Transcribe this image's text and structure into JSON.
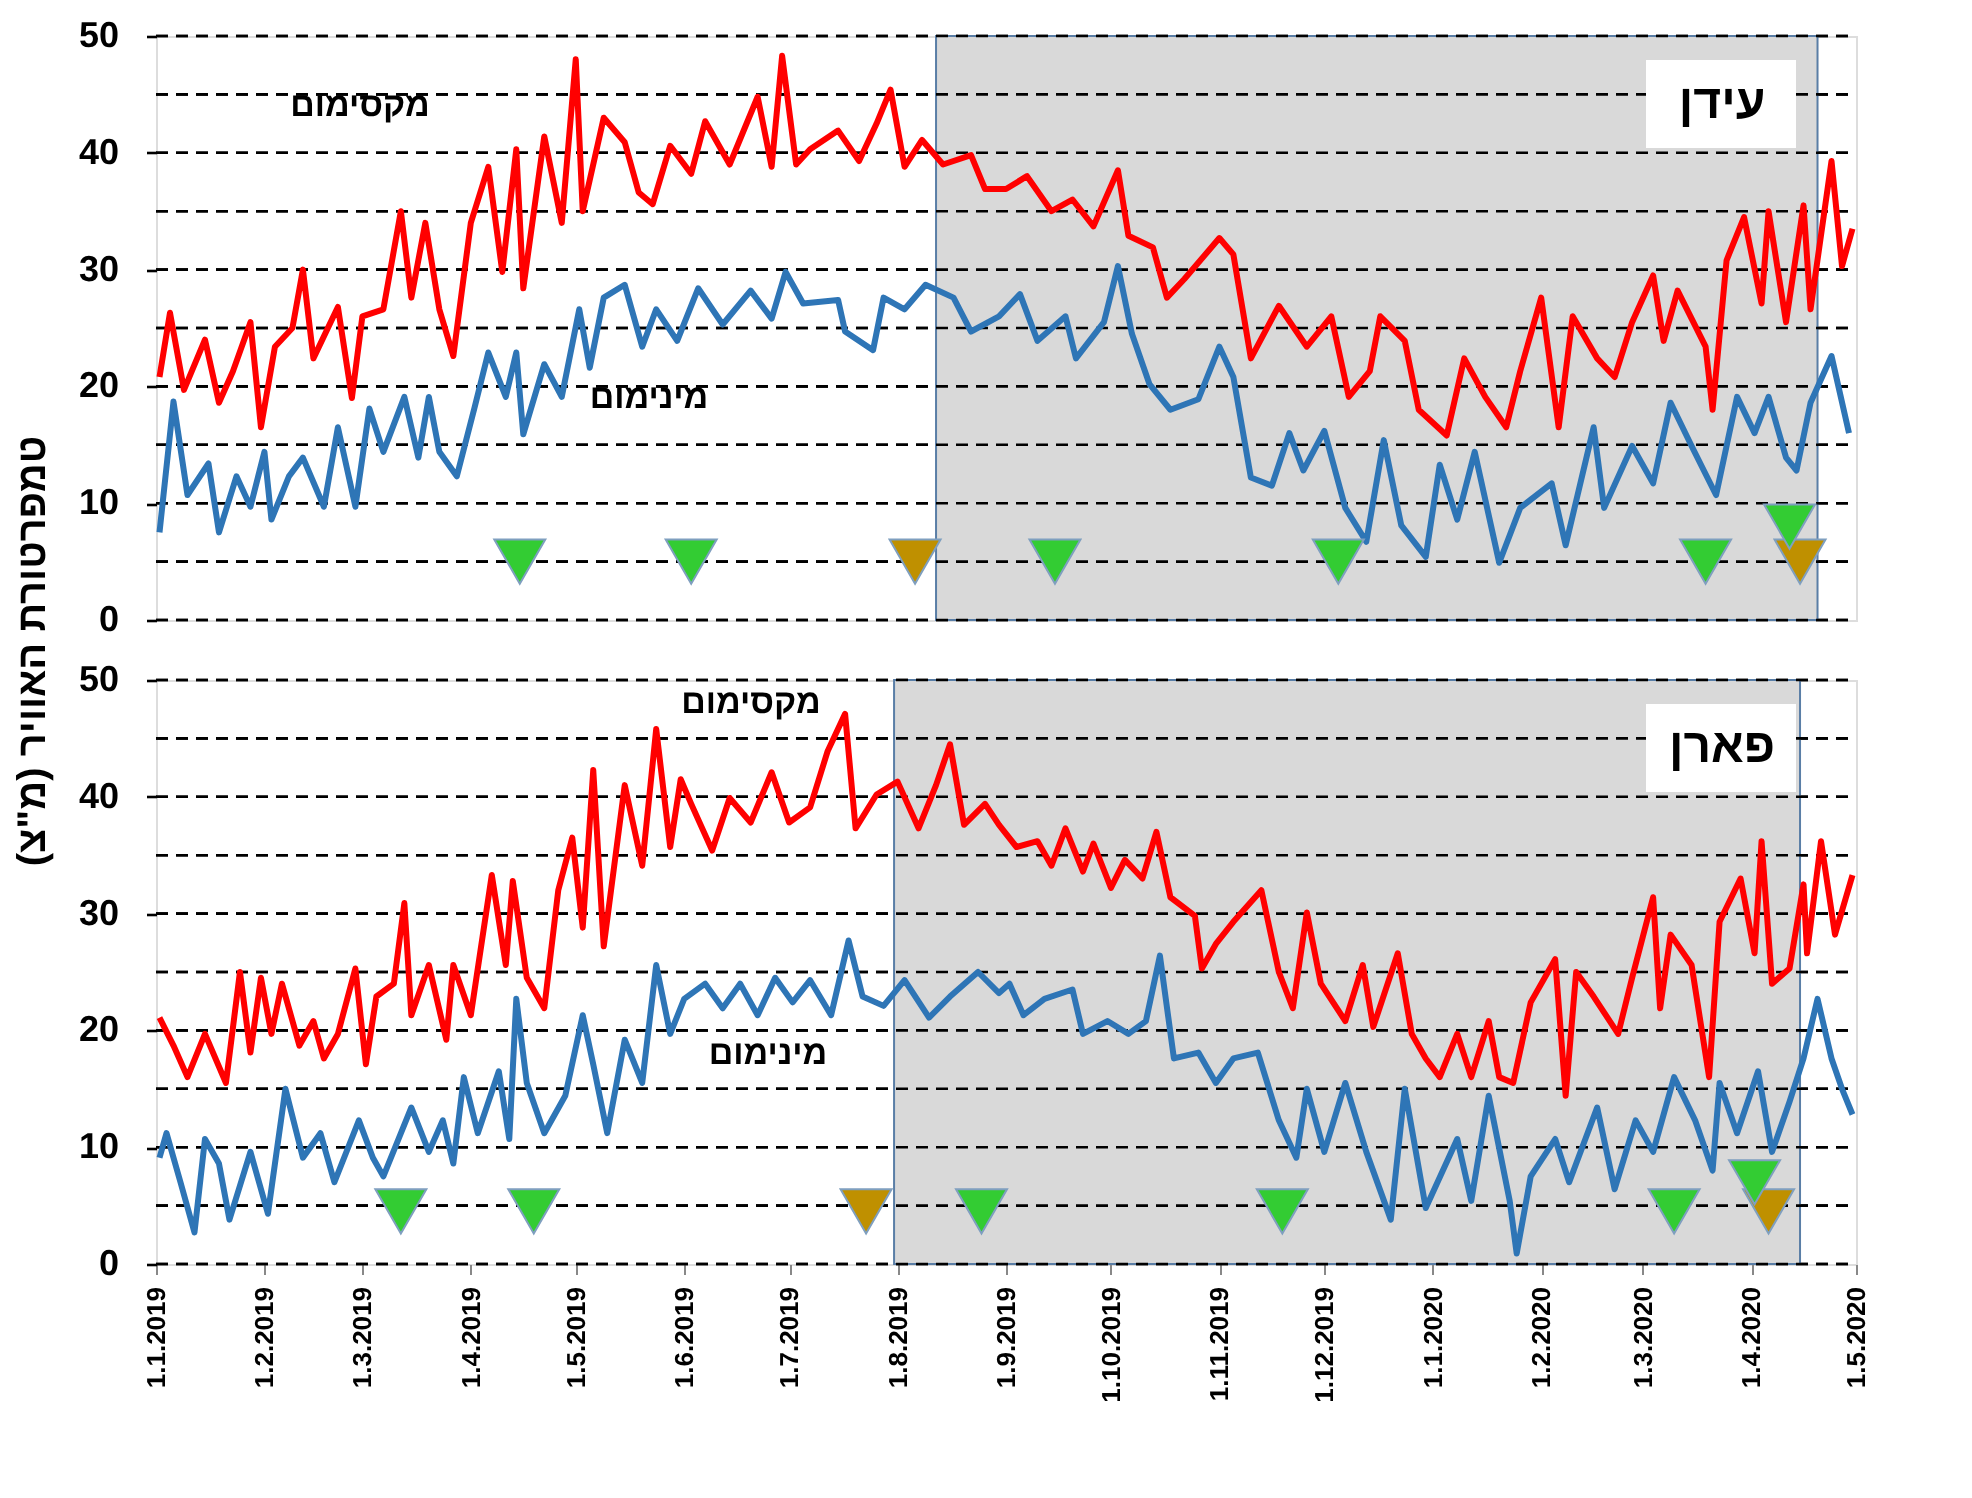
{
  "chart_data": [
    {
      "type": "line",
      "title": "עידן",
      "ylabel": "טמפרטורת האוויר (מ\"צ)",
      "xlim": [
        "2019-01-01",
        "2020-05-01"
      ],
      "ylim": [
        0,
        50
      ],
      "yticks": [
        0,
        {
          "value": 5,
          "label": null
        },
        10,
        {
          "value": 15,
          "label": null
        },
        20,
        {
          "value": 25,
          "label": null
        },
        30,
        {
          "value": 35,
          "label": null
        },
        40,
        {
          "value": 45,
          "label": null
        },
        50
      ],
      "tick_labels": "y",
      "grid": "y",
      "bands": [
        {
          "axis": "x",
          "from": "2019-08-12",
          "to": "2020-04-20",
          "color": "#d9d9d9"
        }
      ],
      "series": [
        {
          "name": "מקסימום",
          "color": "#ff0000",
          "x": [
            "2019-01-02",
            "2019-01-05",
            "2019-01-09",
            "2019-01-15",
            "2019-01-19",
            "2019-01-23",
            "2019-01-28",
            "2019-01-31",
            "2019-02-04",
            "2019-02-09",
            "2019-02-12",
            "2019-02-15",
            "2019-02-22",
            "2019-02-26",
            "2019-03-01",
            "2019-03-07",
            "2019-03-12",
            "2019-03-15",
            "2019-03-19",
            "2019-03-23",
            "2019-03-27",
            "2019-04-01",
            "2019-04-06",
            "2019-04-10",
            "2019-04-14",
            "2019-04-16",
            "2019-04-22",
            "2019-04-27",
            "2019-05-01",
            "2019-05-03",
            "2019-05-09",
            "2019-05-15",
            "2019-05-19",
            "2019-05-23",
            "2019-05-28",
            "2019-06-03",
            "2019-06-07",
            "2019-06-14",
            "2019-06-22",
            "2019-06-26",
            "2019-06-29",
            "2019-07-03",
            "2019-07-07",
            "2019-07-15",
            "2019-07-21",
            "2019-07-26",
            "2019-07-30",
            "2019-08-03",
            "2019-08-08",
            "2019-08-14",
            "2019-08-22",
            "2019-08-26",
            "2019-09-01",
            "2019-09-07",
            "2019-09-14",
            "2019-09-20",
            "2019-09-26",
            "2019-10-03",
            "2019-10-06",
            "2019-10-13",
            "2019-10-17",
            "2019-10-22",
            "2019-11-01",
            "2019-11-05",
            "2019-11-10",
            "2019-11-18",
            "2019-11-26",
            "2019-12-03",
            "2019-12-08",
            "2019-12-14",
            "2019-12-17",
            "2019-12-24",
            "2019-12-28",
            "2020-01-05",
            "2020-01-10",
            "2020-01-16",
            "2020-01-22",
            "2020-01-26",
            "2020-02-01",
            "2020-02-06",
            "2020-02-10",
            "2020-02-17",
            "2020-02-22",
            "2020-02-27",
            "2020-03-04",
            "2020-03-07",
            "2020-03-11",
            "2020-03-19",
            "2020-03-21",
            "2020-03-25",
            "2020-03-30",
            "2020-04-04",
            "2020-04-06",
            "2020-04-11",
            "2020-04-16",
            "2020-04-18",
            "2020-04-24",
            "2020-04-27",
            "2020-04-30"
          ],
          "values": [
            20.8,
            26.3,
            19.7,
            24,
            18.6,
            21.3,
            25.5,
            16.5,
            23.4,
            25,
            30,
            22.4,
            26.8,
            19,
            26,
            26.6,
            35,
            27.6,
            34,
            26.6,
            22.6,
            34,
            38.8,
            29.8,
            40.3,
            28.4,
            41.4,
            34,
            48,
            35,
            43,
            40.9,
            36.6,
            35.6,
            40.6,
            38.2,
            42.7,
            39,
            44.8,
            38.8,
            48.3,
            39,
            40.3,
            41.9,
            39.3,
            42.5,
            45.4,
            38.8,
            41.1,
            39,
            39.8,
            36.9,
            36.9,
            38,
            35,
            36,
            33.7,
            38.5,
            32.9,
            31.9,
            27.6,
            29.2,
            32.7,
            31.3,
            22.4,
            26.9,
            23.4,
            26,
            19.1,
            21.3,
            26,
            23.9,
            18,
            15.8,
            22.4,
            19.1,
            16.5,
            21.3,
            27.6,
            16.5,
            26,
            22.4,
            20.8,
            25.5,
            29.5,
            23.9,
            28.2,
            23.4,
            18,
            30.8,
            34.5,
            27.1,
            35,
            25.5,
            35.5,
            26.6,
            39.3,
            30.3,
            33.5
          ]
        },
        {
          "name": "מינימום",
          "color": "#2e75b6",
          "x": [
            "2019-01-02",
            "2019-01-06",
            "2019-01-10",
            "2019-01-16",
            "2019-01-19",
            "2019-01-24",
            "2019-01-28",
            "2019-02-01",
            "2019-02-03",
            "2019-02-08",
            "2019-02-12",
            "2019-02-18",
            "2019-02-22",
            "2019-02-27",
            "2019-03-03",
            "2019-03-07",
            "2019-03-13",
            "2019-03-17",
            "2019-03-20",
            "2019-03-23",
            "2019-03-28",
            "2019-04-02",
            "2019-04-06",
            "2019-04-11",
            "2019-04-14",
            "2019-04-16",
            "2019-04-22",
            "2019-04-27",
            "2019-05-02",
            "2019-05-05",
            "2019-05-09",
            "2019-05-15",
            "2019-05-20",
            "2019-05-24",
            "2019-05-30",
            "2019-06-05",
            "2019-06-12",
            "2019-06-20",
            "2019-06-26",
            "2019-06-30",
            "2019-07-05",
            "2019-07-15",
            "2019-07-17",
            "2019-07-25",
            "2019-07-28",
            "2019-08-03",
            "2019-08-09",
            "2019-08-17",
            "2019-08-22",
            "2019-08-30",
            "2019-09-05",
            "2019-09-10",
            "2019-09-18",
            "2019-09-21",
            "2019-09-29",
            "2019-10-03",
            "2019-10-07",
            "2019-10-12",
            "2019-10-18",
            "2019-10-26",
            "2019-11-01",
            "2019-11-05",
            "2019-11-10",
            "2019-11-16",
            "2019-11-21",
            "2019-11-25",
            "2019-12-01",
            "2019-12-07",
            "2019-12-13",
            "2019-12-18",
            "2019-12-23",
            "2019-12-30",
            "2020-01-03",
            "2020-01-08",
            "2020-01-13",
            "2020-01-20",
            "2020-01-26",
            "2020-02-04",
            "2020-02-08",
            "2020-02-16",
            "2020-02-19",
            "2020-02-27",
            "2020-03-04",
            "2020-03-09",
            "2020-03-15",
            "2020-03-22",
            "2020-03-28",
            "2020-04-02",
            "2020-04-06",
            "2020-04-11",
            "2020-04-14",
            "2020-04-18",
            "2020-04-24",
            "2020-04-29"
          ],
          "values": [
            7.5,
            18.7,
            10.7,
            13.4,
            7.5,
            12.3,
            9.7,
            14.4,
            8.6,
            12.3,
            13.9,
            9.7,
            16.5,
            9.7,
            18.1,
            14.4,
            19.1,
            13.9,
            19.1,
            14.4,
            12.3,
            18.1,
            22.9,
            19.1,
            22.9,
            15.9,
            21.9,
            19.1,
            26.6,
            21.6,
            27.6,
            28.7,
            23.4,
            26.6,
            23.9,
            28.4,
            25.3,
            28.2,
            25.8,
            29.8,
            27.1,
            27.4,
            24.7,
            23.1,
            27.6,
            26.6,
            28.7,
            27.6,
            24.7,
            26,
            27.9,
            23.9,
            26,
            22.4,
            25.5,
            30.3,
            24.5,
            20.2,
            18,
            18.9,
            23.4,
            20.8,
            12.2,
            11.5,
            16,
            12.8,
            16.2,
            9.6,
            6.7,
            15.4,
            8.1,
            5.4,
            13.3,
            8.6,
            14.4,
            4.9,
            9.6,
            11.7,
            6.4,
            16.5,
            9.6,
            14.9,
            11.7,
            18.6,
            14.9,
            10.7,
            19.1,
            16,
            19.1,
            13.9,
            12.8,
            18.6,
            22.6,
            16
          ]
        },
        {
          "type": "scatter",
          "color": "#bf9000",
          "marker": "triangle",
          "x": [
            "2019-08-06",
            "2020-04-15"
          ],
          "values": [
            5,
            5
          ]
        },
        {
          "type": "scatter",
          "color": "#33cc33",
          "marker": "triangle",
          "x": [
            "2019-04-15",
            "2019-06-03",
            "2019-09-15",
            "2019-12-05",
            "2020-03-19",
            "2020-04-12"
          ],
          "values": [
            5,
            5,
            5,
            5,
            5,
            8
          ]
        }
      ]
    },
    {
      "type": "line",
      "title": "פארן",
      "xlim": [
        "2019-01-01",
        "2020-05-01"
      ],
      "xticks": [
        {
          "value": "2019-01-01",
          "label": "1.1.2019"
        },
        {
          "value": "2019-02-01",
          "label": "1.2.2019"
        },
        {
          "value": "2019-03-01",
          "label": "1.3.2019"
        },
        {
          "value": "2019-04-01",
          "label": "1.4.2019"
        },
        {
          "value": "2019-05-01",
          "label": "1.5.2019"
        },
        {
          "value": "2019-06-01",
          "label": "1.6.2019"
        },
        {
          "value": "2019-07-01",
          "label": "1.7.2019"
        },
        {
          "value": "2019-08-01",
          "label": "1.8.2019"
        },
        {
          "value": "2019-09-01",
          "label": "1.9.2019"
        },
        {
          "value": "2019-10-01",
          "label": "1.10.2019"
        },
        {
          "value": "2019-11-01",
          "label": "1.11.2019"
        },
        {
          "value": "2019-12-01",
          "label": "1.12.2019"
        },
        {
          "value": "2020-01-01",
          "label": "1.1.2020"
        },
        {
          "value": "2020-02-01",
          "label": "1.2.2020"
        },
        {
          "value": "2020-03-01",
          "label": "1.3.2020"
        },
        {
          "value": "2020-04-01",
          "label": "1.4.2020"
        },
        {
          "value": "2020-05-01",
          "label": "1.5.2020"
        }
      ],
      "ylim": [
        0,
        50
      ],
      "yticks": [
        0,
        {
          "value": 5,
          "label": null
        },
        10,
        {
          "value": 15,
          "label": null
        },
        20,
        {
          "value": 25,
          "label": null
        },
        30,
        {
          "value": 35,
          "label": null
        },
        40,
        {
          "value": 45,
          "label": null
        },
        50
      ],
      "grid": "y",
      "bands": [
        {
          "axis": "x",
          "from": "2019-07-31",
          "to": "2020-04-15",
          "color": "#d9d9d9"
        }
      ],
      "series": [
        {
          "name": "מקסימום",
          "color": "#ff0000",
          "x": [
            "2019-01-02",
            "2019-01-06",
            "2019-01-10",
            "2019-01-15",
            "2019-01-21",
            "2019-01-25",
            "2019-01-28",
            "2019-01-31",
            "2019-02-03",
            "2019-02-06",
            "2019-02-11",
            "2019-02-15",
            "2019-02-18",
            "2019-02-22",
            "2019-02-27",
            "2019-03-02",
            "2019-03-05",
            "2019-03-10",
            "2019-03-13",
            "2019-03-15",
            "2019-03-20",
            "2019-03-25",
            "2019-03-27",
            "2019-04-01",
            "2019-04-07",
            "2019-04-11",
            "2019-04-13",
            "2019-04-17",
            "2019-04-22",
            "2019-04-26",
            "2019-04-30",
            "2019-05-03",
            "2019-05-06",
            "2019-05-09",
            "2019-05-15",
            "2019-05-20",
            "2019-05-24",
            "2019-05-28",
            "2019-05-31",
            "2019-06-03",
            "2019-06-09",
            "2019-06-14",
            "2019-06-20",
            "2019-06-26",
            "2019-07-01",
            "2019-07-07",
            "2019-07-12",
            "2019-07-17",
            "2019-07-20",
            "2019-07-26",
            "2019-08-01",
            "2019-08-07",
            "2019-08-12",
            "2019-08-16",
            "2019-08-20",
            "2019-08-26",
            "2019-08-30",
            "2019-09-04",
            "2019-09-10",
            "2019-09-14",
            "2019-09-18",
            "2019-09-23",
            "2019-09-26",
            "2019-10-01",
            "2019-10-05",
            "2019-10-10",
            "2019-10-14",
            "2019-10-18",
            "2019-10-25",
            "2019-10-27",
            "2019-10-31",
            "2019-11-05",
            "2019-11-13",
            "2019-11-18",
            "2019-11-22",
            "2019-11-26",
            "2019-11-30",
            "2019-12-07",
            "2019-12-12",
            "2019-12-15",
            "2019-12-22",
            "2019-12-26",
            "2019-12-30",
            "2020-01-03",
            "2020-01-08",
            "2020-01-12",
            "2020-01-17",
            "2020-01-20",
            "2020-01-24",
            "2020-01-29",
            "2020-02-05",
            "2020-02-08",
            "2020-02-11",
            "2020-02-16",
            "2020-02-23",
            "2020-02-27",
            "2020-03-04",
            "2020-03-06",
            "2020-03-09",
            "2020-03-15",
            "2020-03-20",
            "2020-03-23",
            "2020-03-29",
            "2020-04-02",
            "2020-04-04",
            "2020-04-07",
            "2020-04-12",
            "2020-04-16",
            "2020-04-17",
            "2020-04-21",
            "2020-04-25",
            "2020-04-30"
          ],
          "values": [
            21.1,
            18.7,
            16,
            19.7,
            15.5,
            25,
            18.1,
            24.5,
            19.7,
            24,
            18.7,
            20.8,
            17.6,
            19.7,
            25.3,
            17.1,
            22.9,
            24,
            30.9,
            21.3,
            25.6,
            19.2,
            25.6,
            21.3,
            33.3,
            25.6,
            32.8,
            24.5,
            21.9,
            32,
            36.5,
            28.8,
            42.3,
            27.2,
            41,
            34.1,
            45.8,
            35.7,
            41.5,
            39.4,
            35.4,
            39.9,
            37.8,
            42.1,
            37.8,
            39.1,
            43.9,
            47.1,
            37.3,
            40.2,
            41.3,
            37.3,
            41,
            44.5,
            37.6,
            39.4,
            37.6,
            35.7,
            36.2,
            34.1,
            37.3,
            33.6,
            36,
            32.2,
            34.6,
            33,
            37,
            31.4,
            29.8,
            25.3,
            27.4,
            29.3,
            32,
            25,
            21.9,
            30.1,
            24,
            20.8,
            25.6,
            20.3,
            26.6,
            19.7,
            17.6,
            16,
            19.7,
            16,
            20.8,
            16,
            15.5,
            22.4,
            26.1,
            14.4,
            25,
            22.9,
            19.7,
            24.5,
            31.4,
            21.9,
            28.2,
            25.6,
            16,
            29.3,
            33,
            26.6,
            36.2,
            24,
            25.3,
            32.5,
            26.6,
            36.2,
            28.2,
            33.3
          ]
        },
        {
          "name": "מינימום",
          "color": "#2e75b6",
          "x": [
            "2019-01-02",
            "2019-01-04",
            "2019-01-08",
            "2019-01-12",
            "2019-01-15",
            "2019-01-19",
            "2019-01-22",
            "2019-01-28",
            "2019-02-02",
            "2019-02-07",
            "2019-02-12",
            "2019-02-17",
            "2019-02-21",
            "2019-02-28",
            "2019-03-04",
            "2019-03-07",
            "2019-03-15",
            "2019-03-20",
            "2019-03-24",
            "2019-03-27",
            "2019-03-30",
            "2019-04-03",
            "2019-04-09",
            "2019-04-12",
            "2019-04-14",
            "2019-04-17",
            "2019-04-22",
            "2019-04-28",
            "2019-05-03",
            "2019-05-06",
            "2019-05-10",
            "2019-05-15",
            "2019-05-20",
            "2019-05-24",
            "2019-05-28",
            "2019-06-01",
            "2019-06-07",
            "2019-06-12",
            "2019-06-17",
            "2019-06-22",
            "2019-06-27",
            "2019-07-02",
            "2019-07-07",
            "2019-07-13",
            "2019-07-18",
            "2019-07-22",
            "2019-07-28",
            "2019-08-03",
            "2019-08-10",
            "2019-08-16",
            "2019-08-24",
            "2019-08-30",
            "2019-09-02",
            "2019-09-06",
            "2019-09-12",
            "2019-09-20",
            "2019-09-23",
            "2019-09-30",
            "2019-10-06",
            "2019-10-11",
            "2019-10-15",
            "2019-10-19",
            "2019-10-26",
            "2019-10-31",
            "2019-11-05",
            "2019-11-12",
            "2019-11-18",
            "2019-11-23",
            "2019-11-26",
            "2019-12-01",
            "2019-12-07",
            "2019-12-13",
            "2019-12-20",
            "2019-12-24",
            "2019-12-30",
            "2020-01-08",
            "2020-01-12",
            "2020-01-17",
            "2020-01-23",
            "2020-01-25",
            "2020-01-29",
            "2020-02-05",
            "2020-02-09",
            "2020-02-17",
            "2020-02-22",
            "2020-02-28",
            "2020-03-04",
            "2020-03-10",
            "2020-03-16",
            "2020-03-21",
            "2020-03-23",
            "2020-03-28",
            "2020-04-03",
            "2020-04-07",
            "2020-04-12",
            "2020-04-16",
            "2020-04-20",
            "2020-04-24",
            "2020-04-27",
            "2020-04-30"
          ],
          "values": [
            9.1,
            11.2,
            7,
            2.7,
            10.7,
            8.6,
            3.8,
            9.6,
            4.3,
            15,
            9.1,
            11.2,
            7,
            12.3,
            9.1,
            7.5,
            13.4,
            9.6,
            12.3,
            8.6,
            16,
            11.2,
            16.5,
            10.7,
            22.7,
            15.5,
            11.2,
            14.4,
            21.3,
            17.1,
            11.2,
            19.2,
            15.5,
            25.6,
            19.7,
            22.7,
            24,
            21.9,
            24,
            21.3,
            24.5,
            22.4,
            24.3,
            21.3,
            27.7,
            22.9,
            22.1,
            24.3,
            21.1,
            22.9,
            25,
            23.2,
            24,
            21.3,
            22.7,
            23.5,
            19.7,
            20.8,
            19.7,
            20.8,
            26.4,
            17.6,
            18.1,
            15.5,
            17.6,
            18.1,
            12.3,
            9.1,
            15,
            9.6,
            15.5,
            9.6,
            3.8,
            15,
            4.8,
            10.7,
            5.4,
            14.4,
            5.4,
            0.9,
            7.5,
            10.7,
            7,
            13.4,
            6.4,
            12.3,
            9.6,
            16,
            12.3,
            8,
            15.5,
            11.2,
            16.5,
            9.6,
            13.9,
            17.6,
            22.7,
            17.6,
            15,
            12.8
          ]
        },
        {
          "type": "scatter",
          "color": "#bf9000",
          "marker": "triangle",
          "x": [
            "2019-07-23",
            "2020-04-06"
          ],
          "values": [
            4.5,
            4.5
          ]
        },
        {
          "type": "scatter",
          "color": "#33cc33",
          "marker": "triangle",
          "x": [
            "2019-03-12",
            "2019-04-19",
            "2019-08-25",
            "2019-11-19",
            "2020-03-10",
            "2020-04-02"
          ],
          "values": [
            4.5,
            4.5,
            4.5,
            4.5,
            4.5,
            7
          ]
        }
      ]
    }
  ]
}
